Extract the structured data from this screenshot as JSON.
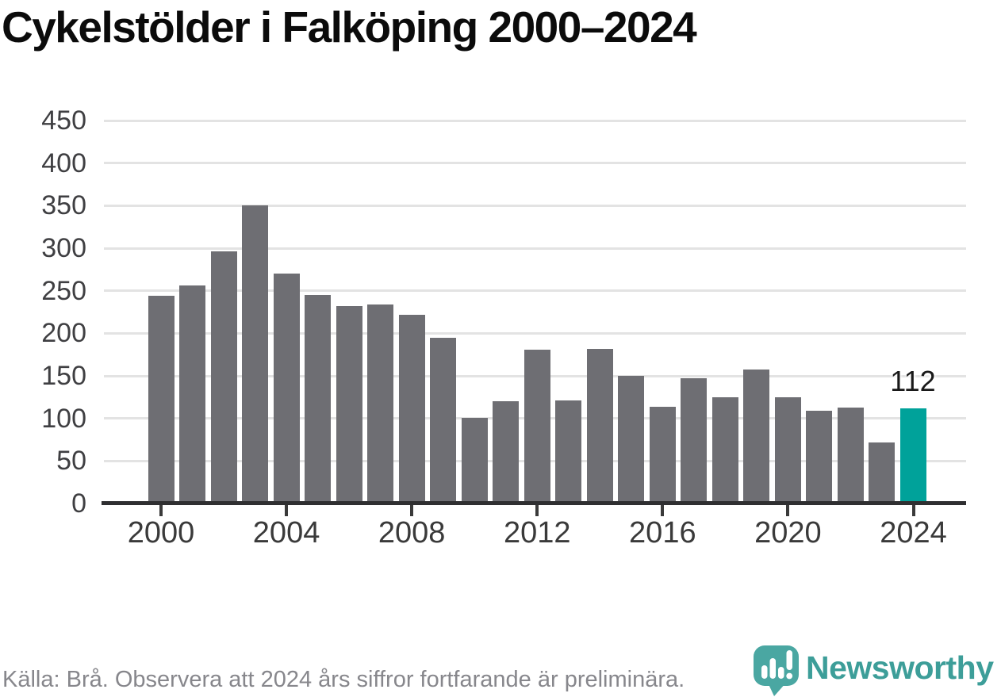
{
  "title": "Cykelstölder i Falköping 2000–2024",
  "chart_data": {
    "type": "bar",
    "title": "Cykelstölder i Falköping 2000–2024",
    "categories": [
      2000,
      2001,
      2002,
      2003,
      2004,
      2005,
      2006,
      2007,
      2008,
      2009,
      2010,
      2011,
      2012,
      2013,
      2014,
      2015,
      2016,
      2017,
      2018,
      2019,
      2020,
      2021,
      2022,
      2023,
      2024
    ],
    "values": [
      244,
      256,
      296,
      350,
      270,
      245,
      232,
      234,
      222,
      195,
      101,
      120,
      181,
      121,
      182,
      150,
      114,
      147,
      125,
      157,
      125,
      109,
      113,
      72,
      112
    ],
    "xlabel": "",
    "ylabel": "",
    "ylim": [
      0,
      450
    ],
    "ytick_step": 50,
    "xtick_years": [
      2000,
      2004,
      2008,
      2012,
      2016,
      2020,
      2024
    ],
    "grid": true,
    "legend_position": "none",
    "bar_color": "#6e6e73",
    "highlight_color": "#00a29a",
    "highlight_year": 2024,
    "annotation": {
      "year": 2024,
      "label": "112"
    }
  },
  "footer": {
    "source_text": "Källa: Brå. Observera att 2024 års siffror fortfarande är preliminära.",
    "brand_name": "Newsworthy",
    "brand_color": "#3d9e99",
    "logo_icon": "speech-bubble-bar-chart-icon"
  }
}
